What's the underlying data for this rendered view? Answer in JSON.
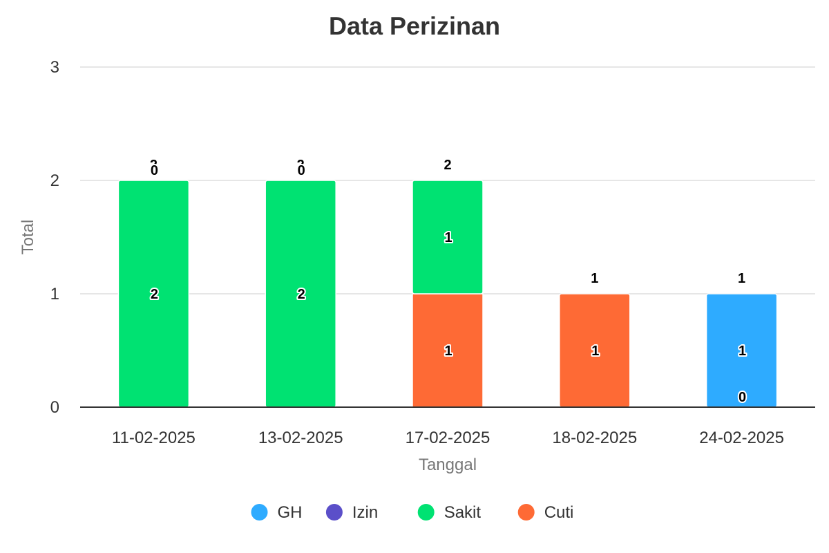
{
  "chart_data": {
    "type": "bar",
    "stacked": true,
    "title": "Data Perizinan",
    "xlabel": "Tanggal",
    "ylabel": "Total",
    "ylim": [
      0,
      3
    ],
    "yticks": [
      "0",
      "1",
      "2",
      "3"
    ],
    "grid": true,
    "legend_position": "bottom",
    "categories": [
      "11-02-2025",
      "13-02-2025",
      "17-02-2025",
      "18-02-2025",
      "24-02-2025"
    ],
    "series": [
      {
        "name": "GH",
        "color": "#2eabff",
        "values": [
          0,
          0,
          0,
          0,
          1
        ]
      },
      {
        "name": "Izin",
        "color": "#5b4fc9",
        "values": [
          0,
          0,
          0,
          0,
          0
        ]
      },
      {
        "name": "Sakit",
        "color": "#00e272",
        "values": [
          2,
          2,
          1,
          0,
          0
        ]
      },
      {
        "name": "Cuti",
        "color": "#fe6a35",
        "values": [
          0,
          0,
          1,
          1,
          0
        ]
      }
    ],
    "totals": [
      "2",
      "2",
      "2",
      "1",
      "1"
    ],
    "segment_labels": [
      {
        "category": 0,
        "series": 2,
        "text": "2"
      },
      {
        "category": 0,
        "series": 0,
        "text": "0"
      },
      {
        "category": 1,
        "series": 2,
        "text": "2"
      },
      {
        "category": 1,
        "series": 0,
        "text": "0"
      },
      {
        "category": 2,
        "series": 2,
        "text": "1"
      },
      {
        "category": 2,
        "series": 3,
        "text": "1"
      },
      {
        "category": 3,
        "series": 3,
        "text": "1"
      },
      {
        "category": 4,
        "series": 0,
        "text": "1"
      },
      {
        "category": 4,
        "series": 2,
        "text": "0"
      }
    ]
  }
}
